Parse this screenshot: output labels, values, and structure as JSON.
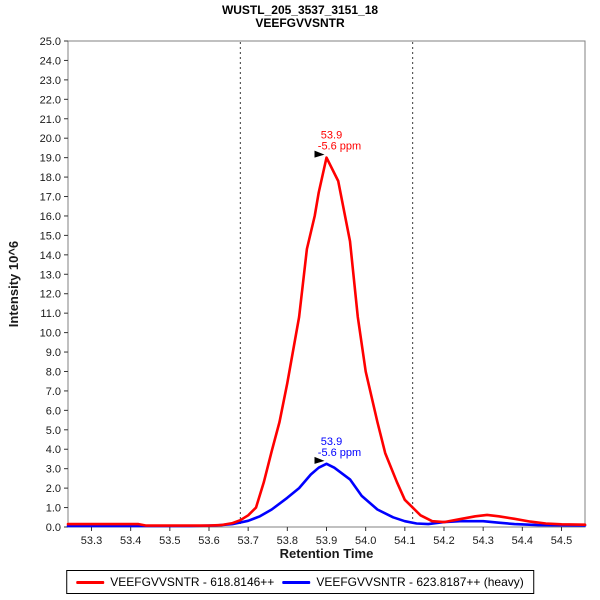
{
  "chart_data": {
    "type": "line",
    "title": "WUSTL_205_3537_3151_18",
    "subtitle": "VEEFGVVSNTR",
    "xlabel": "Retention Time",
    "ylabel": "Intensity 10^6",
    "xlim": [
      53.24,
      54.56
    ],
    "ylim": [
      0,
      25
    ],
    "xticks": [
      53.3,
      53.4,
      53.5,
      53.6,
      53.7,
      53.8,
      53.9,
      54.0,
      54.1,
      54.2,
      54.3,
      54.4,
      54.5
    ],
    "yticks": [
      0.0,
      1.0,
      2.0,
      3.0,
      4.0,
      5.0,
      6.0,
      7.0,
      8.0,
      9.0,
      10.0,
      11.0,
      12.0,
      13.0,
      14.0,
      15.0,
      16.0,
      17.0,
      18.0,
      19.0,
      20.0,
      21.0,
      22.0,
      23.0,
      24.0,
      25.0
    ],
    "grid": false,
    "legend_position": "bottom",
    "integration_boundaries": [
      53.68,
      54.12
    ],
    "boundary_color": "#3a3a3a",
    "series": [
      {
        "name": "VEEFGVVSNTR - 618.8146++",
        "color": "#ff0000",
        "peak": {
          "x": 53.9,
          "y": 19.0
        },
        "annotation": {
          "rt": "53.9",
          "ppm": "-5.6 ppm"
        },
        "points": [
          [
            53.24,
            0.15
          ],
          [
            53.42,
            0.15
          ],
          [
            53.44,
            0.07
          ],
          [
            53.6,
            0.07
          ],
          [
            53.63,
            0.1
          ],
          [
            53.66,
            0.2
          ],
          [
            53.68,
            0.35
          ],
          [
            53.7,
            0.6
          ],
          [
            53.72,
            1.0
          ],
          [
            53.74,
            2.3
          ],
          [
            53.76,
            3.9
          ],
          [
            53.78,
            5.4
          ],
          [
            53.8,
            7.4
          ],
          [
            53.83,
            10.8
          ],
          [
            53.85,
            14.3
          ],
          [
            53.87,
            16.0
          ],
          [
            53.88,
            17.2
          ],
          [
            53.9,
            19.0
          ],
          [
            53.93,
            17.8
          ],
          [
            53.96,
            14.7
          ],
          [
            53.98,
            10.8
          ],
          [
            54.0,
            8.0
          ],
          [
            54.03,
            5.4
          ],
          [
            54.05,
            3.8
          ],
          [
            54.08,
            2.3
          ],
          [
            54.1,
            1.4
          ],
          [
            54.12,
            1.0
          ],
          [
            54.14,
            0.6
          ],
          [
            54.17,
            0.3
          ],
          [
            54.2,
            0.25
          ],
          [
            54.24,
            0.4
          ],
          [
            54.28,
            0.55
          ],
          [
            54.31,
            0.62
          ],
          [
            54.34,
            0.55
          ],
          [
            54.38,
            0.42
          ],
          [
            54.42,
            0.28
          ],
          [
            54.46,
            0.18
          ],
          [
            54.5,
            0.14
          ],
          [
            54.56,
            0.12
          ]
        ]
      },
      {
        "name": "VEEFGVVSNTR - 623.8187++ (heavy)",
        "color": "#0000ff",
        "peak": {
          "x": 53.9,
          "y": 3.25
        },
        "annotation": {
          "rt": "53.9",
          "ppm": "-5.6 ppm"
        },
        "points": [
          [
            53.24,
            0.05
          ],
          [
            53.55,
            0.05
          ],
          [
            53.62,
            0.08
          ],
          [
            53.66,
            0.15
          ],
          [
            53.7,
            0.32
          ],
          [
            53.73,
            0.55
          ],
          [
            53.76,
            0.9
          ],
          [
            53.8,
            1.5
          ],
          [
            53.83,
            2.0
          ],
          [
            53.86,
            2.7
          ],
          [
            53.88,
            3.05
          ],
          [
            53.9,
            3.25
          ],
          [
            53.92,
            3.05
          ],
          [
            53.96,
            2.45
          ],
          [
            53.99,
            1.6
          ],
          [
            54.03,
            0.9
          ],
          [
            54.07,
            0.5
          ],
          [
            54.1,
            0.3
          ],
          [
            54.13,
            0.18
          ],
          [
            54.16,
            0.15
          ],
          [
            54.2,
            0.25
          ],
          [
            54.24,
            0.3
          ],
          [
            54.3,
            0.3
          ],
          [
            54.34,
            0.22
          ],
          [
            54.38,
            0.15
          ],
          [
            54.44,
            0.1
          ],
          [
            54.56,
            0.08
          ]
        ]
      }
    ]
  }
}
